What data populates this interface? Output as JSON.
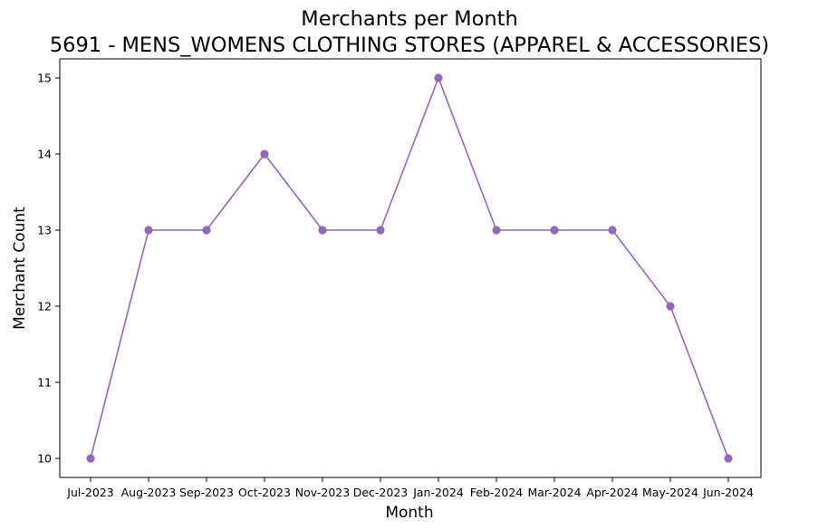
{
  "chart_data": {
    "type": "line",
    "title_line1": "Merchants per Month",
    "title_line2": "5691 - MENS_WOMENS CLOTHING STORES (APPAREL & ACCESSORIES)",
    "xlabel": "Month",
    "ylabel": "Merchant Count",
    "categories": [
      "Jul-2023",
      "Aug-2023",
      "Sep-2023",
      "Oct-2023",
      "Nov-2023",
      "Dec-2023",
      "Jan-2024",
      "Feb-2024",
      "Mar-2024",
      "Apr-2024",
      "May-2024",
      "Jun-2024"
    ],
    "series": [
      {
        "values": [
          10,
          13,
          13,
          14,
          13,
          13,
          15,
          13,
          13,
          13,
          12,
          10
        ],
        "color": "#9467bd",
        "marker": "circle"
      }
    ],
    "yticks": [
      10,
      11,
      12,
      13,
      14,
      15
    ],
    "ylim": [
      9.75,
      15.25
    ],
    "grid": false,
    "legend": "none"
  }
}
